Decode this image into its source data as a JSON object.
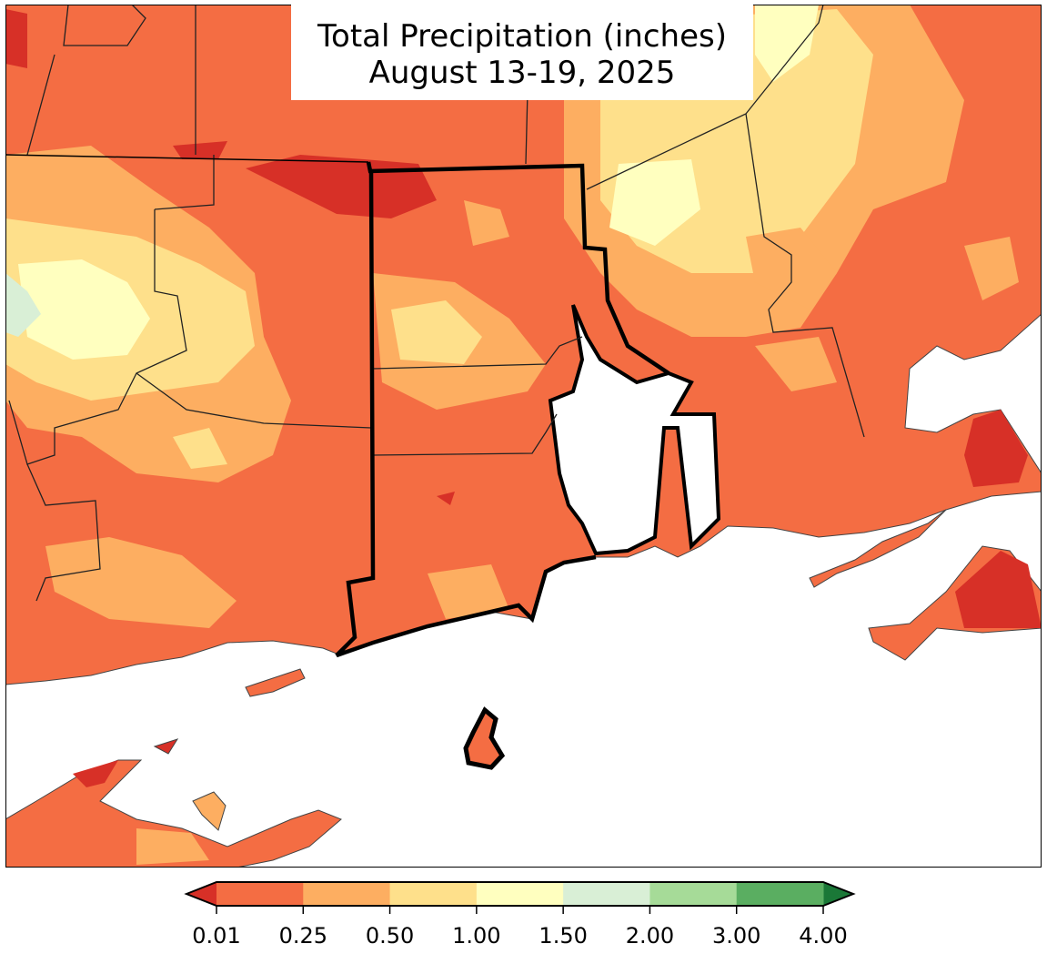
{
  "title": {
    "line1": "Total Precipitation (inches)",
    "line2": "August 13-19, 2025"
  },
  "legend": {
    "type": "colorbar",
    "extend": "both",
    "ticks": [
      "0.01",
      "0.25",
      "0.50",
      "1.00",
      "1.50",
      "2.00",
      "3.00",
      "4.00"
    ],
    "under_color": "#d73027",
    "over_color": "#1a7837",
    "bins": [
      {
        "from": "0.01",
        "to": "0.25",
        "color": "#f46d43"
      },
      {
        "from": "0.25",
        "to": "0.50",
        "color": "#fdae61"
      },
      {
        "from": "0.50",
        "to": "1.00",
        "color": "#fee08b"
      },
      {
        "from": "1.00",
        "to": "1.50",
        "color": "#ffffbf"
      },
      {
        "from": "1.50",
        "to": "2.00",
        "color": "#d9efd6"
      },
      {
        "from": "2.00",
        "to": "3.00",
        "color": "#a6db98"
      },
      {
        "from": "3.00",
        "to": "4.00",
        "color": "#5aae61"
      }
    ]
  }
}
